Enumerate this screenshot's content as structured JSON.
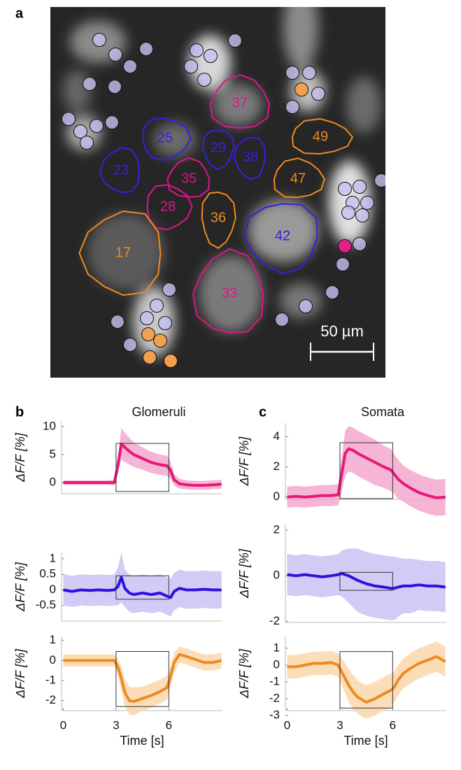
{
  "panel_labels": [
    "a",
    "b",
    "c"
  ],
  "image": {
    "rois": [
      {
        "label": "37",
        "color": "#e0148a"
      },
      {
        "label": "49",
        "color": "#f08a1e"
      },
      {
        "label": "25",
        "color": "#3a1ee0"
      },
      {
        "label": "29",
        "color": "#3a1ee0"
      },
      {
        "label": "38",
        "color": "#3a1ee0"
      },
      {
        "label": "23",
        "color": "#3a1ee0"
      },
      {
        "label": "35",
        "color": "#e0148a"
      },
      {
        "label": "47",
        "color": "#f08a1e"
      },
      {
        "label": "28",
        "color": "#e0148a"
      },
      {
        "label": "36",
        "color": "#f08a1e"
      },
      {
        "label": "42",
        "color": "#3a1ee0"
      },
      {
        "label": "17",
        "color": "#f08a1e"
      },
      {
        "label": "33",
        "color": "#e0148a"
      }
    ],
    "scale_bar": "50 µm"
  },
  "chart_data": [
    {
      "type": "line",
      "title": "Glomeruli",
      "ylabel": "ΔF/F [%]",
      "x": [
        0,
        0.5,
        1,
        1.5,
        2,
        2.5,
        2.9,
        3.1,
        3.3,
        3.5,
        3.75,
        4,
        4.5,
        5,
        5.5,
        5.9,
        6.1,
        6.3,
        6.6,
        7,
        7.5,
        8,
        8.5,
        9
      ],
      "series": [
        {
          "color": "#e6197a",
          "band_color": "#f5a8cc",
          "values": [
            0,
            0,
            0,
            0,
            0,
            0,
            0,
            3,
            6.9,
            6.3,
            5.6,
            5,
            4.3,
            3.6,
            3.2,
            3,
            2.2,
            0.5,
            -0.2,
            -0.4,
            -0.5,
            -0.5,
            -0.4,
            -0.3
          ],
          "error": [
            0.4,
            0.4,
            0.4,
            0.4,
            0.4,
            0.4,
            0.5,
            1.5,
            2.8,
            2.6,
            2.4,
            2.2,
            2,
            1.9,
            1.8,
            1.8,
            1.5,
            1,
            0.9,
            0.8,
            0.8,
            0.8,
            0.8,
            0.8
          ]
        }
      ],
      "stimulus": {
        "x": [
          3,
          6
        ],
        "y": [
          -1.6,
          7
        ]
      },
      "xlim": [
        -0.1,
        9.05
      ],
      "ylim": [
        -2,
        11
      ],
      "yticks": [
        0,
        5,
        10
      ]
    },
    {
      "type": "line",
      "ylabel": "ΔF/F [%]",
      "x": [
        0,
        0.5,
        1,
        1.5,
        2,
        2.5,
        2.9,
        3.1,
        3.3,
        3.5,
        3.75,
        4,
        4.5,
        5,
        5.5,
        5.9,
        6.1,
        6.3,
        6.6,
        7,
        7.5,
        8,
        8.5,
        9
      ],
      "series": [
        {
          "color": "#2a12e0",
          "band_color": "#c9c2f5",
          "values": [
            0,
            -0.05,
            0,
            -0.02,
            0,
            -0.02,
            0,
            0.1,
            0.4,
            0.05,
            -0.1,
            -0.15,
            -0.1,
            -0.15,
            -0.1,
            -0.2,
            -0.25,
            -0.05,
            0.05,
            0,
            0,
            0.02,
            0,
            0
          ],
          "error": [
            0.5,
            0.5,
            0.5,
            0.5,
            0.5,
            0.5,
            0.5,
            0.6,
            0.8,
            0.6,
            0.6,
            0.6,
            0.6,
            0.6,
            0.6,
            0.6,
            0.6,
            0.6,
            0.6,
            0.6,
            0.6,
            0.6,
            0.6,
            0.6
          ]
        }
      ],
      "stimulus": {
        "x": [
          3,
          6
        ],
        "y": [
          -0.3,
          0.45
        ]
      },
      "xlim": [
        -0.1,
        9.05
      ],
      "ylim": [
        -1,
        1.2
      ],
      "yticks": [
        -0.5,
        0,
        0.5,
        1
      ]
    },
    {
      "type": "line",
      "ylabel": "ΔF/F [%]",
      "xlabel": "Time [s]",
      "x": [
        0,
        0.5,
        1,
        1.5,
        2,
        2.5,
        2.9,
        3.1,
        3.3,
        3.5,
        3.75,
        4,
        4.5,
        5,
        5.5,
        5.9,
        6.1,
        6.3,
        6.6,
        7,
        7.5,
        8,
        8.5,
        9
      ],
      "series": [
        {
          "color": "#f08a1e",
          "band_color": "#fad8ac",
          "values": [
            0,
            0,
            0,
            0,
            0,
            0,
            0,
            -0.3,
            -0.9,
            -1.6,
            -2,
            -2.05,
            -1.9,
            -1.75,
            -1.55,
            -1.35,
            -0.8,
            -0.1,
            0.3,
            0.2,
            0.05,
            -0.1,
            -0.1,
            0
          ],
          "error": [
            0.3,
            0.3,
            0.3,
            0.3,
            0.3,
            0.3,
            0.3,
            0.4,
            0.6,
            0.7,
            0.7,
            0.7,
            0.6,
            0.6,
            0.6,
            0.6,
            0.5,
            0.5,
            0.4,
            0.4,
            0.4,
            0.4,
            0.4,
            0.4
          ]
        }
      ],
      "stimulus": {
        "x": [
          3,
          6
        ],
        "y": [
          -2.3,
          0.45
        ]
      },
      "xlim": [
        -0.1,
        9.05
      ],
      "ylim": [
        -2.5,
        1.2
      ],
      "yticks": [
        -2,
        -1,
        0,
        1
      ],
      "xticks": [
        0,
        3,
        6
      ]
    },
    {
      "type": "line",
      "title": "Somata",
      "ylabel": "ΔF/F [%]",
      "x": [
        0,
        0.5,
        1,
        1.5,
        2,
        2.5,
        2.9,
        3.1,
        3.3,
        3.5,
        3.75,
        4,
        4.5,
        5,
        5.5,
        5.9,
        6.1,
        6.3,
        6.6,
        7,
        7.5,
        8,
        8.5,
        9
      ],
      "series": [
        {
          "color": "#e6197a",
          "band_color": "#f5a8cc",
          "values": [
            0,
            0.05,
            0,
            0.05,
            0.1,
            0.1,
            0.15,
            1.5,
            2.9,
            3.2,
            3.1,
            2.9,
            2.6,
            2.3,
            2,
            1.8,
            1.5,
            1.2,
            0.9,
            0.6,
            0.3,
            0.1,
            -0.05,
            0
          ],
          "error": [
            0.7,
            0.7,
            0.7,
            0.7,
            0.7,
            0.7,
            0.7,
            1.2,
            1.5,
            1.5,
            1.5,
            1.5,
            1.5,
            1.5,
            1.4,
            1.4,
            1.3,
            1.3,
            1.2,
            1.2,
            1.2,
            1.2,
            1.2,
            1.2
          ]
        }
      ],
      "stimulus": {
        "x": [
          3,
          6
        ],
        "y": [
          -0.1,
          3.6
        ]
      },
      "xlim": [
        -0.1,
        9.05
      ],
      "ylim": [
        -0.15,
        4.9
      ],
      "yticks": [
        0,
        2,
        4
      ]
    },
    {
      "type": "line",
      "ylabel": "ΔF/F [%]",
      "x": [
        0,
        0.5,
        1,
        1.5,
        2,
        2.5,
        2.9,
        3.1,
        3.3,
        3.5,
        3.75,
        4,
        4.5,
        5,
        5.5,
        5.9,
        6.1,
        6.3,
        6.6,
        7,
        7.5,
        8,
        8.5,
        9
      ],
      "series": [
        {
          "color": "#2a12e0",
          "band_color": "#c9c2f5",
          "values": [
            0.05,
            0,
            0.05,
            0,
            -0.05,
            0,
            0.05,
            0.1,
            0.05,
            0,
            -0.1,
            -0.2,
            -0.35,
            -0.45,
            -0.5,
            -0.55,
            -0.55,
            -0.5,
            -0.45,
            -0.45,
            -0.4,
            -0.45,
            -0.45,
            -0.5
          ],
          "error": [
            0.9,
            0.9,
            0.9,
            0.9,
            0.9,
            0.9,
            0.9,
            1,
            1.1,
            1.2,
            1.3,
            1.4,
            1.4,
            1.4,
            1.4,
            1.4,
            1.4,
            1.3,
            1.2,
            1.2,
            1.1,
            1.1,
            1.1,
            1.1
          ]
        }
      ],
      "stimulus": {
        "x": [
          3,
          6
        ],
        "y": [
          -0.64,
          0.15
        ]
      },
      "xlim": [
        -0.1,
        9.05
      ],
      "ylim": [
        -2.05,
        2.25
      ],
      "yticks": [
        -2,
        0,
        2
      ]
    },
    {
      "type": "line",
      "ylabel": "ΔF/F [%]",
      "xlabel": "Time [s]",
      "x": [
        0,
        0.5,
        1,
        1.5,
        2,
        2.5,
        2.9,
        3.1,
        3.3,
        3.5,
        3.75,
        4,
        4.5,
        5,
        5.5,
        5.9,
        6.1,
        6.3,
        6.6,
        7,
        7.5,
        8,
        8.5,
        9
      ],
      "series": [
        {
          "color": "#f08a1e",
          "band_color": "#fad8ac",
          "values": [
            -0.1,
            -0.1,
            0,
            0.1,
            0.1,
            0.15,
            0,
            -0.4,
            -0.8,
            -1.2,
            -1.6,
            -1.9,
            -2.2,
            -2,
            -1.7,
            -1.5,
            -1.3,
            -0.9,
            -0.5,
            -0.2,
            0.1,
            0.3,
            0.5,
            0.2
          ],
          "error": [
            0.7,
            0.7,
            0.7,
            0.7,
            0.7,
            0.7,
            0.7,
            0.8,
            0.9,
            1,
            1,
            1,
            1,
            1,
            1,
            1,
            0.9,
            0.9,
            0.9,
            0.9,
            0.9,
            0.9,
            0.9,
            0.9
          ]
        }
      ],
      "stimulus": {
        "x": [
          3,
          6
        ],
        "y": [
          -2.55,
          0.8
        ]
      },
      "xlim": [
        -0.1,
        9.05
      ],
      "ylim": [
        -2.7,
        1.7
      ],
      "yticks": [
        -3,
        -2,
        -1,
        0,
        1
      ],
      "xticks": [
        0,
        3,
        6
      ]
    }
  ]
}
